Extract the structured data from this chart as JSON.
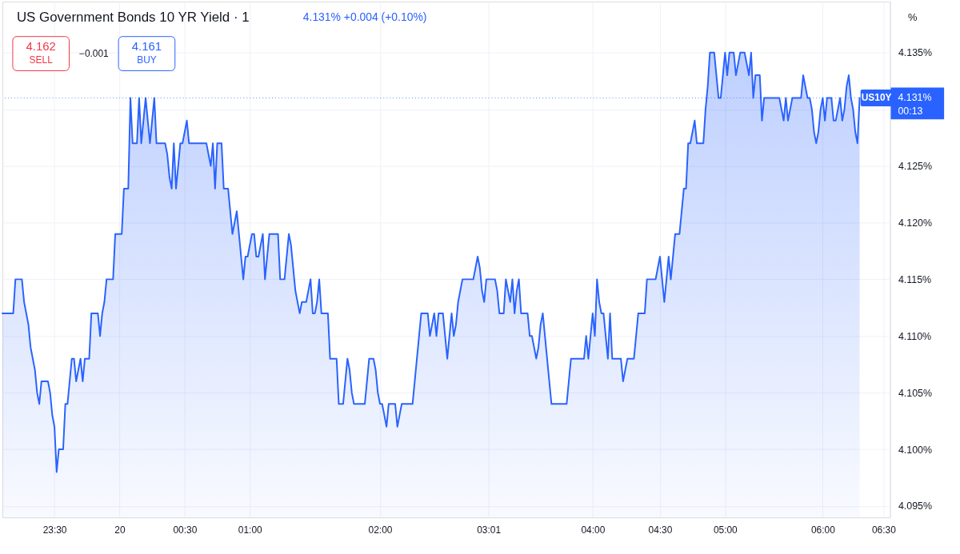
{
  "chart_data": {
    "type": "area",
    "title": "US Government Bonds 10 YR Yield · 1",
    "subtitle": "4.131% +0.004 (+0.10%)",
    "ylabel": "%",
    "color": "#2962ff",
    "grid": true,
    "categories": [
      null,
      null,
      null,
      null,
      null,
      null,
      null,
      null,
      null,
      null,
      null,
      null,
      null,
      null,
      null,
      null,
      null,
      null,
      null,
      null,
      null,
      null,
      null,
      null,
      "23:30",
      null,
      null,
      null,
      null,
      null,
      null,
      null,
      null,
      null,
      null,
      null,
      null,
      null,
      null,
      null,
      null,
      null,
      null,
      null,
      null,
      null,
      null,
      null,
      null,
      null,
      null,
      null,
      null,
      null,
      "20",
      null,
      null,
      null,
      null,
      null,
      null,
      null,
      null,
      null,
      null,
      null,
      null,
      null,
      null,
      null,
      null,
      null,
      null,
      null,
      null,
      null,
      null,
      null,
      null,
      null,
      null,
      null,
      null,
      null,
      "00:30",
      null,
      null,
      null,
      null,
      null,
      null,
      null,
      null,
      null,
      null,
      null,
      null,
      null,
      null,
      null,
      null,
      null,
      null,
      null,
      null,
      null,
      null,
      null,
      null,
      null,
      null,
      null,
      null,
      null,
      "01:00",
      null,
      null,
      null,
      null,
      null,
      null,
      null,
      null,
      null,
      null,
      null,
      null,
      null,
      null,
      null,
      null,
      null,
      null,
      null,
      null,
      null,
      null,
      null,
      null,
      null,
      null,
      null,
      null,
      null,
      null,
      null,
      null,
      null,
      null,
      null,
      null,
      null,
      null,
      null,
      null,
      null,
      null,
      null,
      null,
      null,
      null,
      null,
      null,
      null,
      null,
      null,
      null,
      null,
      null,
      null,
      null,
      null,
      null,
      null,
      "02:00",
      null,
      null,
      null,
      null,
      null,
      null,
      null,
      null,
      null,
      null,
      null,
      null,
      null,
      null,
      null,
      null,
      null,
      null,
      null,
      null,
      null,
      null,
      null,
      null,
      null,
      null,
      null,
      null,
      null,
      null,
      null,
      null,
      null,
      null,
      null,
      null,
      null,
      null,
      null,
      null,
      null,
      null,
      null,
      null,
      null,
      null,
      null,
      null,
      null,
      "03:01",
      null,
      null,
      null,
      null,
      null,
      null,
      null,
      null,
      null,
      null,
      null,
      null,
      null,
      null,
      null,
      null,
      null,
      null,
      null,
      null,
      null,
      null,
      null,
      null,
      null,
      null,
      null,
      null,
      null,
      null,
      null,
      null,
      null,
      null,
      null,
      null,
      null,
      null,
      null,
      null,
      null,
      null,
      null,
      null,
      null,
      null,
      null,
      "04:00",
      null,
      null,
      null,
      null,
      null,
      null,
      null,
      null,
      null,
      null,
      null,
      null,
      null,
      null,
      null,
      null,
      null,
      null,
      null,
      null,
      null,
      null,
      null,
      null,
      null,
      null,
      null,
      null,
      null,
      null,
      "04:30",
      null,
      null,
      null,
      null,
      null,
      null,
      null,
      null,
      null,
      null,
      null,
      null,
      null,
      null,
      null,
      null,
      null,
      null,
      null,
      null,
      null,
      null,
      null,
      null,
      null,
      null,
      null,
      null,
      null,
      "05:00",
      null,
      null,
      null,
      null,
      null,
      null,
      null,
      null,
      null,
      null,
      null,
      null,
      null,
      null,
      null,
      null,
      null,
      null,
      null,
      null,
      null,
      null,
      null,
      null,
      null,
      null,
      null,
      null,
      null,
      null,
      null,
      null,
      null,
      null,
      null,
      null,
      null,
      null,
      null,
      null,
      null,
      null,
      null,
      null,
      "06:00",
      null,
      null,
      null,
      null,
      null,
      null,
      null,
      null,
      null,
      null,
      null,
      null,
      null,
      null,
      null,
      null,
      null,
      null,
      null,
      null,
      null,
      null,
      null,
      null,
      null,
      null,
      null,
      "06:30",
      null,
      null,
      null
    ],
    "values": [
      4.112,
      4.112,
      4.112,
      4.112,
      4.112,
      4.112,
      4.115,
      4.115,
      4.115,
      4.115,
      4.113,
      4.112,
      4.111,
      4.109,
      4.108,
      4.107,
      4.105,
      4.104,
      4.106,
      4.106,
      4.106,
      4.106,
      4.105,
      4.103,
      4.102,
      4.098,
      4.1,
      4.1,
      4.1,
      4.104,
      4.104,
      4.106,
      4.108,
      4.108,
      4.106,
      4.107,
      4.108,
      4.106,
      4.108,
      4.108,
      4.108,
      4.112,
      4.112,
      4.112,
      4.112,
      4.11,
      4.112,
      4.113,
      4.115,
      4.115,
      4.115,
      4.115,
      4.119,
      4.119,
      4.119,
      4.119,
      4.123,
      4.123,
      4.123,
      4.131,
      4.127,
      4.127,
      4.127,
      4.131,
      4.127,
      4.129,
      4.131,
      4.129,
      4.127,
      4.129,
      4.131,
      4.127,
      4.127,
      4.127,
      4.127,
      4.127,
      4.126,
      4.124,
      4.123,
      4.127,
      4.123,
      4.125,
      4.127,
      4.127,
      4.128,
      4.129,
      4.127,
      4.127,
      4.127,
      4.127,
      4.127,
      4.127,
      4.127,
      4.127,
      4.127,
      4.126,
      4.125,
      4.127,
      4.123,
      4.127,
      4.127,
      4.127,
      4.123,
      4.123,
      4.123,
      4.121,
      4.119,
      4.12,
      4.121,
      4.119,
      4.117,
      4.115,
      4.117,
      4.117,
      4.118,
      4.119,
      4.119,
      4.117,
      4.117,
      4.118,
      4.119,
      4.115,
      4.117,
      4.119,
      4.119,
      4.119,
      4.119,
      4.119,
      4.115,
      4.115,
      4.115,
      4.117,
      4.119,
      4.118,
      4.116,
      4.114,
      4.113,
      4.112,
      4.113,
      4.113,
      4.113,
      4.114,
      4.115,
      4.112,
      4.112,
      4.113,
      4.115,
      4.112,
      4.112,
      4.112,
      4.112,
      4.108,
      4.108,
      4.108,
      4.108,
      4.104,
      4.104,
      4.104,
      4.106,
      4.108,
      4.107,
      4.105,
      4.104,
      4.104,
      4.104,
      4.104,
      4.104,
      4.104,
      4.106,
      4.108,
      4.108,
      4.108,
      4.107,
      4.105,
      4.104,
      4.104,
      4.103,
      4.102,
      4.104,
      4.104,
      4.104,
      4.104,
      4.102,
      4.103,
      4.104,
      4.104,
      4.104,
      4.104,
      4.104,
      4.104,
      4.106,
      4.108,
      4.11,
      4.112,
      4.112,
      4.112,
      4.112,
      4.11,
      4.111,
      4.112,
      4.11,
      4.112,
      4.112,
      4.112,
      4.11,
      4.108,
      4.11,
      4.112,
      4.11,
      4.111,
      4.113,
      4.114,
      4.115,
      4.115,
      4.115,
      4.115,
      4.115,
      4.115,
      4.116,
      4.117,
      4.116,
      4.114,
      4.113,
      4.115,
      4.115,
      4.115,
      4.115,
      4.115,
      4.114,
      4.112,
      4.112,
      4.112,
      4.115,
      4.114,
      4.113,
      4.115,
      4.112,
      4.114,
      4.115,
      4.112,
      4.112,
      4.112,
      4.112,
      4.11,
      4.11,
      4.109,
      4.108,
      4.109,
      4.111,
      4.112,
      4.11,
      4.108,
      4.106,
      4.104,
      4.104,
      4.104,
      4.104,
      4.104,
      4.104,
      4.104,
      4.104,
      4.106,
      4.108,
      4.108,
      4.108,
      4.108,
      4.108,
      4.108,
      4.108,
      4.11,
      4.108,
      4.11,
      4.112,
      4.11,
      4.115,
      4.113,
      4.112,
      4.112,
      4.11,
      4.108,
      4.112,
      4.108,
      4.108,
      4.108,
      4.108,
      4.108,
      4.106,
      4.107,
      4.108,
      4.108,
      4.108,
      4.108,
      4.11,
      4.112,
      4.112,
      4.112,
      4.112,
      4.115,
      4.115,
      4.115,
      4.115,
      4.115,
      4.116,
      4.117,
      4.115,
      4.113,
      4.115,
      4.117,
      4.115,
      4.117,
      4.119,
      4.119,
      4.119,
      4.121,
      4.123,
      4.123,
      4.127,
      4.127,
      4.128,
      4.129,
      4.127,
      4.127,
      4.127,
      4.127,
      4.13,
      4.132,
      4.135,
      4.135,
      4.135,
      4.133,
      4.131,
      4.131,
      4.133,
      4.135,
      4.133,
      4.135,
      4.135,
      4.135,
      4.133,
      4.134,
      4.135,
      4.135,
      4.135,
      4.134,
      4.133,
      4.135,
      4.131,
      4.133,
      4.133,
      4.133,
      4.129,
      4.131,
      4.131,
      4.131,
      4.131,
      4.131,
      4.131,
      4.131,
      4.131,
      4.13,
      4.129,
      4.131,
      4.129,
      4.13,
      4.131,
      4.131,
      4.131,
      4.131,
      4.131,
      4.133,
      4.132,
      4.131,
      4.131,
      4.13,
      4.128,
      4.127,
      4.128,
      4.13,
      4.131,
      4.129,
      4.131,
      4.131,
      4.131,
      4.129,
      4.129,
      4.13,
      4.131,
      4.129,
      4.13,
      4.132,
      4.133,
      4.131,
      4.13,
      4.128,
      4.127,
      4.131,
      null,
      null,
      null,
      null,
      null,
      null,
      null,
      null,
      null,
      null,
      null,
      null,
      null,
      null
    ],
    "ylim": [
      4.094,
      4.1395
    ],
    "yticks": [
      {
        "value": 4.095,
        "label": "4.095%"
      },
      {
        "value": 4.1,
        "label": "4.100%"
      },
      {
        "value": 4.105,
        "label": "4.105%"
      },
      {
        "value": 4.11,
        "label": "4.110%"
      },
      {
        "value": 4.115,
        "label": "4.115%"
      },
      {
        "value": 4.12,
        "label": "4.120%"
      },
      {
        "value": 4.125,
        "label": "4.125%"
      },
      {
        "value": 4.13,
        "label": null
      },
      {
        "value": 4.135,
        "label": "4.135%"
      }
    ],
    "ref_lines": [
      {
        "axis": "y",
        "value": 4.131,
        "label": "4.131%",
        "color": "#2962ff",
        "line_style": "dotted"
      }
    ],
    "annotations": [
      "4.162",
      "SELL",
      "−0.001",
      "4.161",
      "BUY",
      "00:13",
      {
        "text": "US10Y",
        "y": 4.131
      }
    ]
  }
}
